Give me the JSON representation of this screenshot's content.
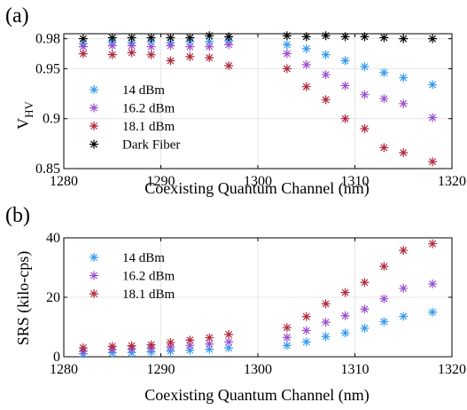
{
  "colors": {
    "14 dBm": "#3399ee",
    "16.2 dBm": "#9b4fd0",
    "18.1 dBm": "#b0283c",
    "Dark Fiber": "#000000"
  },
  "chart_data": [
    {
      "type": "scatter",
      "panel_label": "(a)",
      "xlabel": "Coexisting Quantum Channel (nm)",
      "ylabel_main": "V",
      "ylabel_sub": "HV",
      "xlim": [
        1280,
        1320
      ],
      "ylim": [
        0.85,
        0.985
      ],
      "xticks": [
        1280,
        1290,
        1300,
        1310,
        1320
      ],
      "yticks": [
        0.85,
        0.9,
        0.95,
        0.98
      ],
      "ytick_labels": [
        "0.85",
        "0.9",
        "0.95",
        "0.98"
      ],
      "grid": true,
      "legend_position": "bottom-left",
      "x": [
        1282,
        1285,
        1287,
        1289,
        1291,
        1293,
        1295,
        1297,
        1303,
        1305,
        1307,
        1309,
        1311,
        1313,
        1315,
        1318
      ],
      "series": [
        {
          "name": "14 dBm",
          "values": [
            0.975,
            0.977,
            0.976,
            0.977,
            0.976,
            0.977,
            0.977,
            0.978,
            0.974,
            0.97,
            0.964,
            0.958,
            0.952,
            0.946,
            0.941,
            0.934
          ]
        },
        {
          "name": "16.2 dBm",
          "values": [
            0.972,
            0.973,
            0.973,
            0.972,
            0.973,
            0.972,
            0.972,
            0.974,
            0.965,
            0.954,
            0.944,
            0.933,
            0.924,
            0.92,
            0.915,
            0.901
          ]
        },
        {
          "name": "18.1 dBm",
          "values": [
            0.965,
            0.964,
            0.966,
            0.964,
            0.958,
            0.962,
            0.961,
            0.953,
            0.95,
            0.932,
            0.919,
            0.9,
            0.89,
            0.871,
            0.866,
            0.857
          ]
        },
        {
          "name": "Dark Fiber",
          "values": [
            0.98,
            0.981,
            0.981,
            0.981,
            0.981,
            0.981,
            0.983,
            0.982,
            0.983,
            0.982,
            0.983,
            0.982,
            0.982,
            0.981,
            0.98,
            0.98
          ]
        }
      ]
    },
    {
      "type": "scatter",
      "panel_label": "(b)",
      "xlabel": "Coexisting Quantum Channel (nm)",
      "ylabel": "SRS (kilo-cps)",
      "xlim": [
        1280,
        1320
      ],
      "ylim": [
        0,
        40
      ],
      "xticks": [
        1280,
        1290,
        1300,
        1310,
        1320
      ],
      "yticks": [
        0,
        20,
        40
      ],
      "ytick_labels": [
        "0",
        "20",
        "40"
      ],
      "grid": true,
      "legend_position": "top-left",
      "x": [
        1282,
        1285,
        1287,
        1289,
        1291,
        1293,
        1295,
        1297,
        1303,
        1305,
        1307,
        1309,
        1311,
        1313,
        1315,
        1318
      ],
      "series": [
        {
          "name": "14 dBm",
          "values": [
            1.0,
            1.3,
            1.4,
            1.6,
            1.9,
            2.2,
            2.5,
            3.0,
            3.8,
            5.0,
            6.8,
            8.0,
            9.6,
            11.8,
            13.6,
            15.0
          ]
        },
        {
          "name": "16.2 dBm",
          "values": [
            1.9,
            2.4,
            2.6,
            2.9,
            3.3,
            3.8,
            4.3,
            5.0,
            6.5,
            8.8,
            11.6,
            13.8,
            16.0,
            19.5,
            23.0,
            24.5
          ]
        },
        {
          "name": "18.1 dBm",
          "values": [
            3.0,
            3.5,
            3.7,
            4.0,
            4.8,
            5.6,
            6.4,
            7.5,
            9.8,
            13.5,
            17.8,
            21.6,
            25.0,
            30.4,
            35.8,
            38.0
          ]
        }
      ]
    }
  ]
}
